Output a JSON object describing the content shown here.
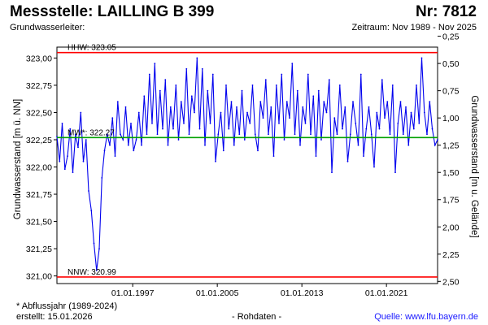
{
  "header": {
    "station": "Messstelle: LAILLING B 399",
    "number": "Nr: 7812",
    "aquifer": "Grundwasserleiter:",
    "period": "Zeitraum: Nov 1989 - Nov 2025"
  },
  "footer": {
    "footnote": "* Abflussjahr (1989-2024)",
    "created": "erstellt:  15.01.2026",
    "rawdata": "- Rohdaten -",
    "source": "Quelle:  www.lfu.bayern.de"
  },
  "colors": {
    "series": "#0000ee",
    "extreme_lines": "#ff0000",
    "mean_line": "#00a000"
  },
  "chart_data": {
    "type": "line",
    "title": "",
    "ylabel": "Grundwasserstand [m ü. NN]",
    "y2label": "Grundwasserstand [m u. Gelände]",
    "xlabel": "",
    "xlim": [
      "1989-11-01",
      "2025-11-01"
    ],
    "ylim": [
      320.93,
      323.1
    ],
    "y2lim": [
      2.52,
      0.35
    ],
    "grid": false,
    "xticks": [
      "01.01.1997",
      "01.01.2005",
      "01.01.2013",
      "01.01.2021"
    ],
    "yticks": [
      "321,00",
      "321,25",
      "321,50",
      "321,75",
      "322,00",
      "322,25",
      "322,50",
      "322,75",
      "323,00"
    ],
    "y2ticks": [
      "2,50",
      "2,25",
      "2,00",
      "1,75",
      "1,50",
      "1,25",
      "1,00",
      "0,75",
      "0,50",
      "0,25"
    ],
    "reference_lines": [
      {
        "label": "HHW: 323.05",
        "value": 323.05,
        "color": "#ff0000"
      },
      {
        "label": "MW*: 322.27",
        "value": 322.27,
        "color": "#00a000"
      },
      {
        "label": "NNW: 320.99",
        "value": 320.99,
        "color": "#ff0000"
      }
    ],
    "series": [
      {
        "name": "",
        "x": [
          "1989-11",
          "1990-02",
          "1990-05",
          "1990-08",
          "1990-11",
          "1991-02",
          "1991-05",
          "1991-08",
          "1991-11",
          "1992-02",
          "1992-05",
          "1992-08",
          "1992-11",
          "1993-02",
          "1993-05",
          "1993-08",
          "1993-11",
          "1994-02",
          "1994-05",
          "1994-08",
          "1994-11",
          "1995-02",
          "1995-05",
          "1995-08",
          "1995-11",
          "1996-02",
          "1996-05",
          "1996-08",
          "1996-11",
          "1997-02",
          "1997-05",
          "1997-08",
          "1997-11",
          "1998-02",
          "1998-05",
          "1998-08",
          "1998-11",
          "1999-02",
          "1999-05",
          "1999-08",
          "1999-11",
          "2000-02",
          "2000-05",
          "2000-08",
          "2000-11",
          "2001-02",
          "2001-05",
          "2001-08",
          "2001-11",
          "2002-02",
          "2002-05",
          "2002-08",
          "2002-11",
          "2003-02",
          "2003-05",
          "2003-08",
          "2003-11",
          "2004-02",
          "2004-05",
          "2004-08",
          "2004-11",
          "2005-02",
          "2005-05",
          "2005-08",
          "2005-11",
          "2006-02",
          "2006-05",
          "2006-08",
          "2006-11",
          "2007-02",
          "2007-05",
          "2007-08",
          "2007-11",
          "2008-02",
          "2008-05",
          "2008-08",
          "2008-11",
          "2009-02",
          "2009-05",
          "2009-08",
          "2009-11",
          "2010-02",
          "2010-05",
          "2010-08",
          "2010-11",
          "2011-02",
          "2011-05",
          "2011-08",
          "2011-11",
          "2012-02",
          "2012-05",
          "2012-08",
          "2012-11",
          "2013-02",
          "2013-05",
          "2013-08",
          "2013-11",
          "2014-02",
          "2014-05",
          "2014-08",
          "2014-11",
          "2015-02",
          "2015-05",
          "2015-08",
          "2015-11",
          "2016-02",
          "2016-05",
          "2016-08",
          "2016-11",
          "2017-02",
          "2017-05",
          "2017-08",
          "2017-11",
          "2018-02",
          "2018-05",
          "2018-08",
          "2018-11",
          "2019-02",
          "2019-05",
          "2019-08",
          "2019-11",
          "2020-02",
          "2020-05",
          "2020-08",
          "2020-11",
          "2021-02",
          "2021-05",
          "2021-08",
          "2021-11",
          "2022-02",
          "2022-05",
          "2022-08",
          "2022-11",
          "2023-02",
          "2023-05",
          "2023-08",
          "2023-11",
          "2024-02",
          "2024-05",
          "2024-08",
          "2024-11",
          "2025-02",
          "2025-05",
          "2025-08",
          "2025-11"
        ],
        "values": [
          322.28,
          322.05,
          322.4,
          321.98,
          322.1,
          322.35,
          321.95,
          322.3,
          322.18,
          322.5,
          322.05,
          322.25,
          321.78,
          321.6,
          321.3,
          321.05,
          321.25,
          321.9,
          322.15,
          322.3,
          322.2,
          322.45,
          322.1,
          322.6,
          322.3,
          322.25,
          322.55,
          322.2,
          322.4,
          322.15,
          322.25,
          322.5,
          322.2,
          322.65,
          322.3,
          322.85,
          322.4,
          322.95,
          322.3,
          322.7,
          322.35,
          322.8,
          322.2,
          322.55,
          322.35,
          322.75,
          322.25,
          322.6,
          322.4,
          322.9,
          322.3,
          322.65,
          322.5,
          323.0,
          322.35,
          322.9,
          322.2,
          322.7,
          322.4,
          322.85,
          322.05,
          322.3,
          322.5,
          322.15,
          322.75,
          322.35,
          322.6,
          322.2,
          322.55,
          322.3,
          322.7,
          322.25,
          322.5,
          322.4,
          322.75,
          322.3,
          322.15,
          322.6,
          322.45,
          322.8,
          322.3,
          322.55,
          322.1,
          322.75,
          322.4,
          322.85,
          322.25,
          322.6,
          322.45,
          322.95,
          322.3,
          322.7,
          322.2,
          322.55,
          322.4,
          322.85,
          322.3,
          322.65,
          322.1,
          322.7,
          322.25,
          322.6,
          322.5,
          322.8,
          321.95,
          322.45,
          322.3,
          322.75,
          322.35,
          322.55,
          322.05,
          322.3,
          322.6,
          322.4,
          322.2,
          322.85,
          322.1,
          322.35,
          322.55,
          322.3,
          322.0,
          322.5,
          322.35,
          322.8,
          322.45,
          322.6,
          322.3,
          322.75,
          321.95,
          322.4,
          322.6,
          322.3,
          322.55,
          322.2,
          322.5,
          322.35,
          322.75,
          322.4,
          323.0,
          322.5,
          322.3,
          322.6,
          322.35,
          322.2,
          322.25
        ]
      }
    ]
  }
}
